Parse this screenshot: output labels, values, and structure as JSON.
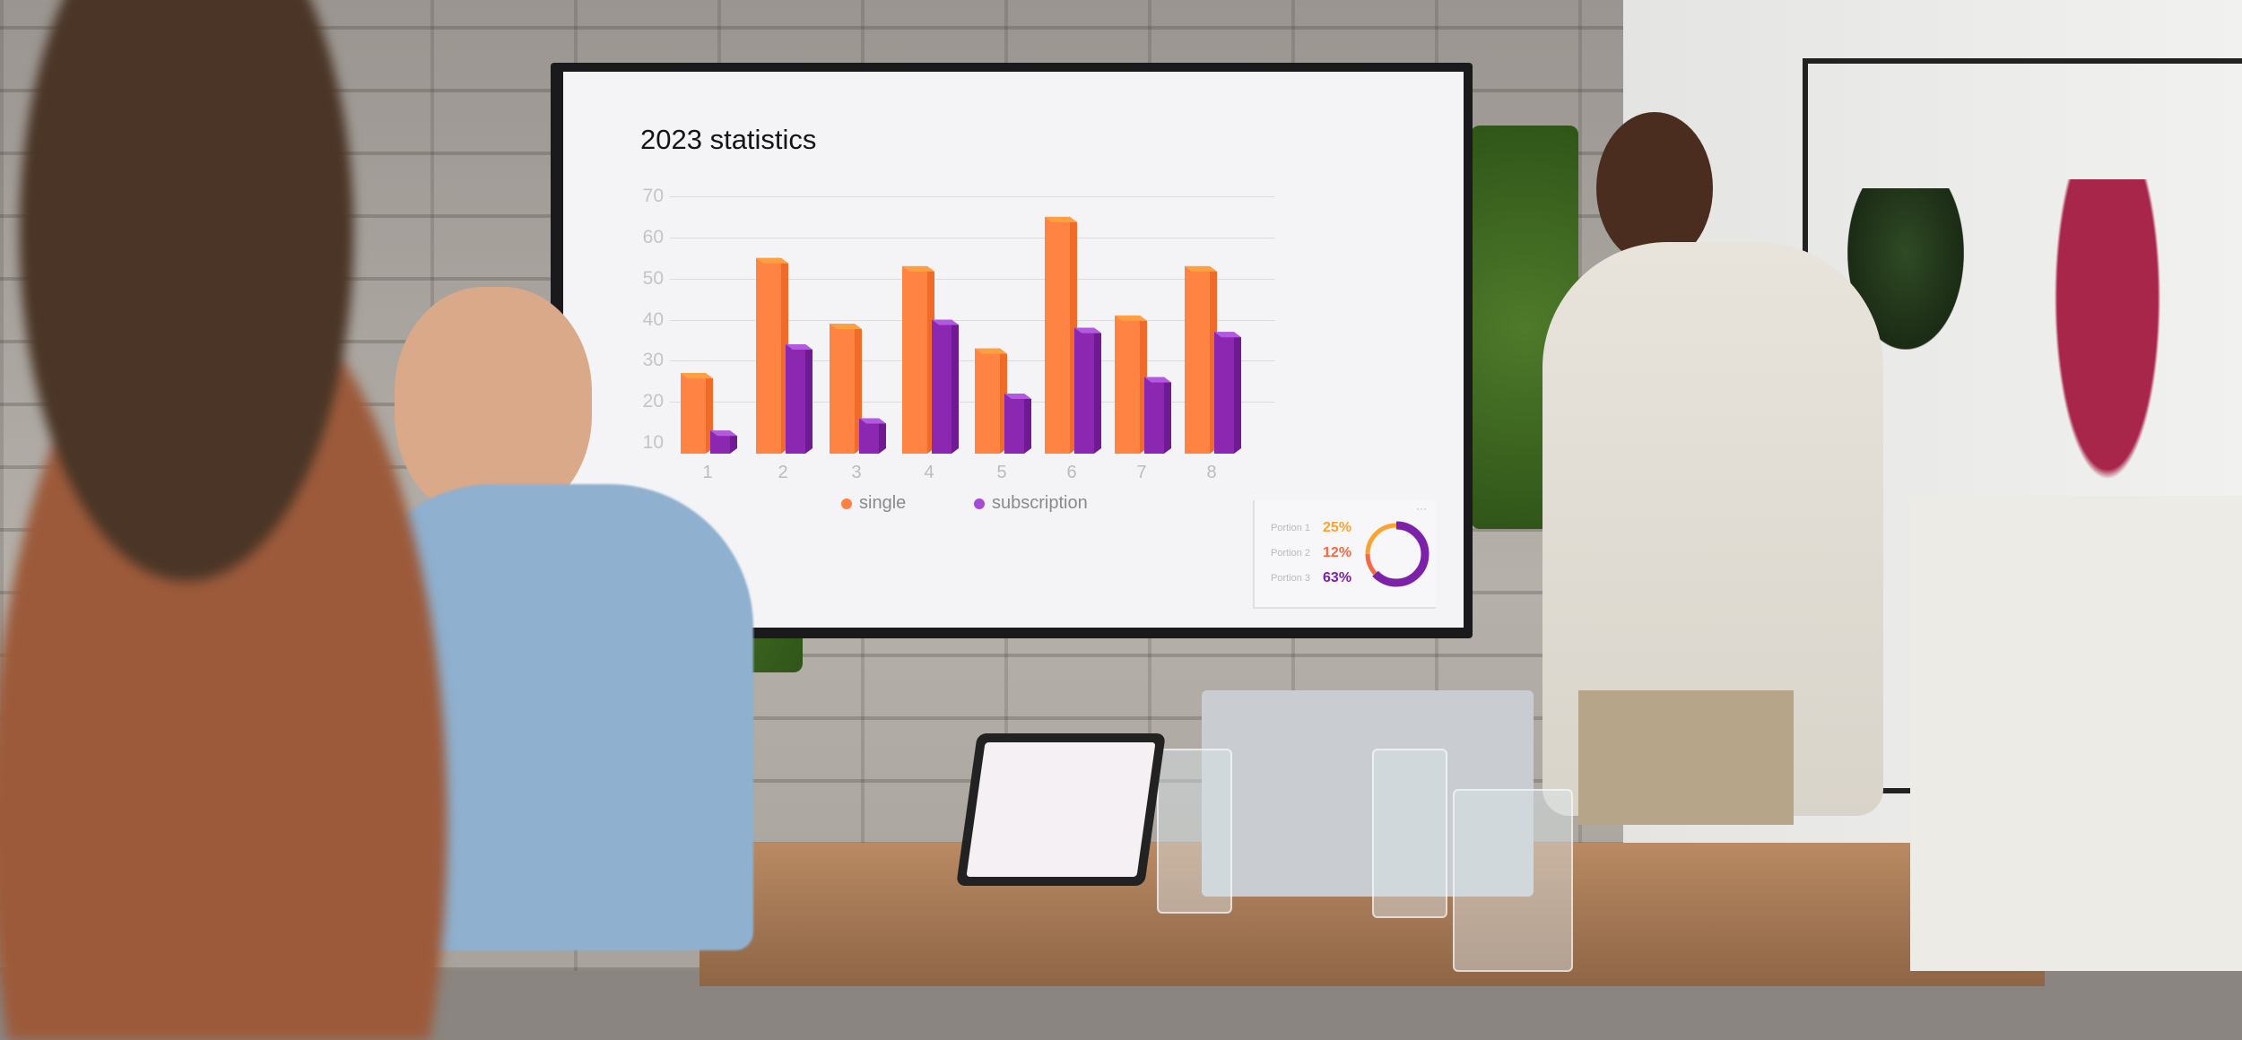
{
  "chart_data": {
    "type": "bar",
    "title": "2023 statistics",
    "categories": [
      "1",
      "2",
      "3",
      "4",
      "5",
      "6",
      "7",
      "8"
    ],
    "y_ticks": [
      "10",
      "20",
      "30",
      "40",
      "50",
      "60",
      "70"
    ],
    "ylim": [
      10,
      70
    ],
    "grid": true,
    "legend_placement": "bottom",
    "series": [
      {
        "name": "single",
        "color": "#ff8142",
        "values": [
          27,
          55,
          39,
          53,
          33,
          65,
          41,
          53
        ]
      },
      {
        "name": "subscription",
        "color": "#8b27b0",
        "values": [
          13,
          34,
          16,
          40,
          22,
          38,
          26,
          37
        ]
      }
    ]
  },
  "donut": {
    "portions": [
      {
        "label": "Portion 1",
        "value": "25%",
        "percent": 25,
        "color": "#f8a332"
      },
      {
        "label": "Portion 2",
        "value": "12%",
        "percent": 12,
        "color": "#f36a45"
      },
      {
        "label": "Portion 3",
        "value": "63%",
        "percent": 63,
        "color": "#7b22a8"
      }
    ],
    "menu_icon": "more-horizontal-icon"
  }
}
